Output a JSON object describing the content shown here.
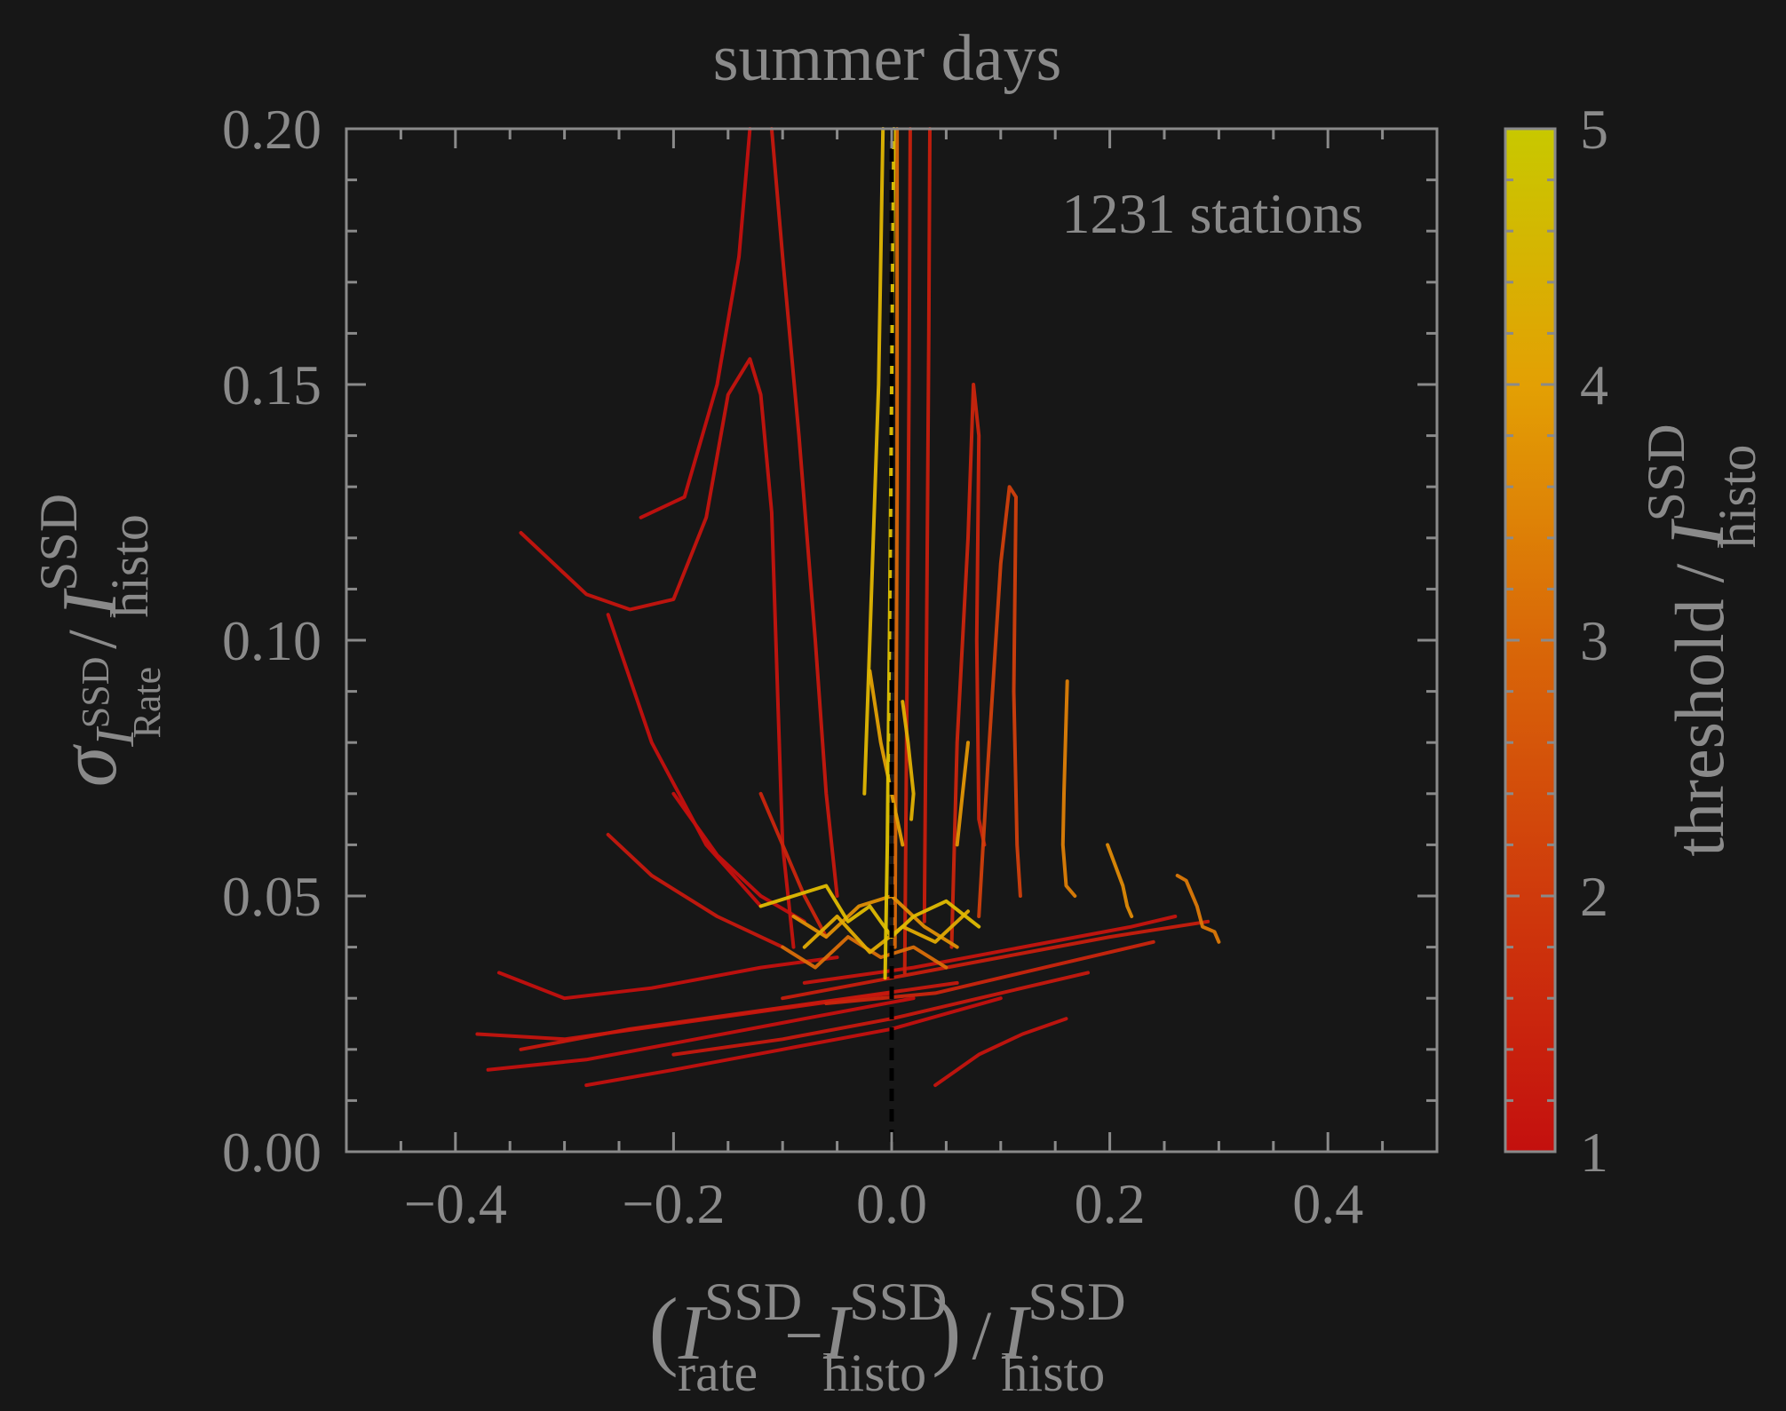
{
  "chart_data": {
    "type": "line",
    "title": "summer days",
    "annotation": "1231 stations",
    "xlabel": {
      "open": "(",
      "I1": "I",
      "sup1": "SSD",
      "sub1": "rate",
      "minus": "−",
      "I2": "I",
      "sup2": "SSD",
      "sub2": "histo",
      "close": ")",
      "slash": "/",
      "I3": "I",
      "sup3": "SSD",
      "sub3": "histo"
    },
    "ylabel": {
      "sigma": "σ",
      "subI": "I",
      "subsup": "SSD",
      "subsub": "Rate",
      "slash": "/",
      "I": "I",
      "sup": "SSD",
      "sub": "histo"
    },
    "colorbar": {
      "label": {
        "prefix": "threshold",
        "slash": "/",
        "I": "I",
        "sup": "SSD",
        "sub": "histo"
      },
      "range": [
        1,
        5
      ],
      "ticks": [
        "1",
        "2",
        "3",
        "4",
        "5"
      ],
      "colors": [
        "#c4100e",
        "#cf3a0c",
        "#d96808",
        "#e3a004",
        "#dcd800"
      ]
    },
    "xlim": [
      -0.5,
      0.5
    ],
    "ylim": [
      0.0,
      0.2
    ],
    "xticks": [
      -0.4,
      -0.2,
      0.0,
      0.2,
      0.4
    ],
    "xtick_labels": [
      "−0.4",
      "−0.2",
      "0.0",
      "0.2",
      "0.4"
    ],
    "yticks": [
      0.0,
      0.05,
      0.1,
      0.15,
      0.2
    ],
    "ytick_labels": [
      "0.00",
      "0.05",
      "0.10",
      "0.15",
      "0.20"
    ],
    "reference_line": {
      "x": 0.0,
      "style": "dashed",
      "color": "#000000"
    },
    "n_stations": 1231,
    "series": [
      {
        "values": [
          [
            -0.34,
            0.121
          ],
          [
            -0.28,
            0.109
          ],
          [
            -0.24,
            0.106
          ],
          [
            -0.2,
            0.108
          ],
          [
            -0.17,
            0.124
          ],
          [
            -0.15,
            0.148
          ],
          [
            -0.13,
            0.155
          ],
          [
            -0.12,
            0.148
          ],
          [
            -0.11,
            0.125
          ],
          [
            -0.1,
            0.06
          ],
          [
            -0.09,
            0.04
          ]
        ],
        "threshold": 1.1
      },
      {
        "values": [
          [
            -0.23,
            0.124
          ],
          [
            -0.19,
            0.128
          ],
          [
            -0.16,
            0.15
          ],
          [
            -0.14,
            0.175
          ],
          [
            -0.13,
            0.2
          ]
        ],
        "threshold": 1.0
      },
      {
        "values": [
          [
            -0.11,
            0.2
          ],
          [
            -0.1,
            0.175
          ],
          [
            -0.085,
            0.14
          ],
          [
            -0.07,
            0.1
          ],
          [
            -0.06,
            0.07
          ],
          [
            -0.05,
            0.05
          ]
        ],
        "threshold": 1.2
      },
      {
        "values": [
          [
            -0.006,
            0.034
          ],
          [
            -0.004,
            0.06
          ],
          [
            -0.002,
            0.1
          ],
          [
            0.0,
            0.15
          ],
          [
            0.002,
            0.2
          ]
        ],
        "threshold": 4.6
      },
      {
        "values": [
          [
            -0.025,
            0.07
          ],
          [
            -0.02,
            0.1
          ],
          [
            -0.012,
            0.15
          ],
          [
            -0.008,
            0.2
          ]
        ],
        "threshold": 4.4
      },
      {
        "values": [
          [
            0.003,
            0.04
          ],
          [
            0.004,
            0.08
          ],
          [
            0.005,
            0.13
          ],
          [
            0.005,
            0.2
          ]
        ],
        "threshold": 3.0
      },
      {
        "values": [
          [
            0.012,
            0.035
          ],
          [
            0.014,
            0.09
          ],
          [
            0.016,
            0.15
          ],
          [
            0.017,
            0.2
          ]
        ],
        "threshold": 1.4
      },
      {
        "values": [
          [
            0.03,
            0.045
          ],
          [
            0.032,
            0.1
          ],
          [
            0.034,
            0.16
          ],
          [
            0.035,
            0.2
          ]
        ],
        "threshold": 1.3
      },
      {
        "values": [
          [
            0.055,
            0.04
          ],
          [
            0.06,
            0.08
          ],
          [
            0.07,
            0.12
          ],
          [
            0.075,
            0.15
          ],
          [
            0.08,
            0.14
          ],
          [
            0.078,
            0.1
          ],
          [
            0.08,
            0.065
          ],
          [
            0.085,
            0.06
          ]
        ],
        "threshold": 1.5
      },
      {
        "values": [
          [
            0.08,
            0.046
          ],
          [
            0.088,
            0.075
          ],
          [
            0.1,
            0.115
          ],
          [
            0.108,
            0.13
          ],
          [
            0.114,
            0.128
          ],
          [
            0.112,
            0.09
          ],
          [
            0.115,
            0.06
          ],
          [
            0.118,
            0.05
          ]
        ],
        "threshold": 2.1
      },
      {
        "values": [
          [
            0.161,
            0.092
          ],
          [
            0.16,
            0.085
          ],
          [
            0.158,
            0.07
          ],
          [
            0.157,
            0.06
          ],
          [
            0.16,
            0.052
          ],
          [
            0.168,
            0.05
          ]
        ],
        "threshold": 3.4
      },
      {
        "values": [
          [
            0.198,
            0.06
          ],
          [
            0.205,
            0.056
          ],
          [
            0.212,
            0.052
          ],
          [
            0.216,
            0.048
          ],
          [
            0.22,
            0.046
          ]
        ],
        "threshold": 3.6
      },
      {
        "values": [
          [
            0.262,
            0.054
          ],
          [
            0.27,
            0.053
          ],
          [
            0.28,
            0.048
          ],
          [
            0.285,
            0.044
          ],
          [
            0.296,
            0.043
          ],
          [
            0.3,
            0.041
          ]
        ],
        "threshold": 3.3
      },
      {
        "values": [
          [
            -0.12,
            0.07
          ],
          [
            -0.1,
            0.06
          ],
          [
            -0.08,
            0.05
          ],
          [
            -0.06,
            0.042
          ]
        ],
        "threshold": 1.5
      },
      {
        "values": [
          [
            -0.26,
            0.105
          ],
          [
            -0.22,
            0.08
          ],
          [
            -0.17,
            0.06
          ],
          [
            -0.12,
            0.048
          ]
        ],
        "threshold": 1.0
      },
      {
        "values": [
          [
            -0.2,
            0.07
          ],
          [
            -0.16,
            0.058
          ],
          [
            -0.12,
            0.05
          ],
          [
            -0.08,
            0.045
          ]
        ],
        "threshold": 1.0
      },
      {
        "values": [
          [
            -0.26,
            0.062
          ],
          [
            -0.22,
            0.054
          ],
          [
            -0.16,
            0.046
          ],
          [
            -0.1,
            0.04
          ]
        ],
        "threshold": 1.2
      },
      {
        "values": [
          [
            -0.36,
            0.035
          ],
          [
            -0.3,
            0.03
          ],
          [
            -0.22,
            0.032
          ],
          [
            -0.12,
            0.036
          ],
          [
            -0.05,
            0.038
          ]
        ],
        "threshold": 1.0
      },
      {
        "values": [
          [
            -0.38,
            0.023
          ],
          [
            -0.3,
            0.022
          ],
          [
            -0.2,
            0.025
          ],
          [
            -0.1,
            0.028
          ],
          [
            0.0,
            0.031
          ]
        ],
        "threshold": 1.1
      },
      {
        "values": [
          [
            -0.37,
            0.016
          ],
          [
            -0.28,
            0.018
          ],
          [
            -0.18,
            0.022
          ],
          [
            -0.08,
            0.026
          ],
          [
            0.02,
            0.03
          ]
        ],
        "threshold": 1.0
      },
      {
        "values": [
          [
            -0.34,
            0.02
          ],
          [
            -0.24,
            0.024
          ],
          [
            -0.14,
            0.027
          ],
          [
            -0.04,
            0.03
          ],
          [
            0.06,
            0.033
          ]
        ],
        "threshold": 1.2
      },
      {
        "values": [
          [
            -0.28,
            0.013
          ],
          [
            -0.2,
            0.016
          ],
          [
            -0.1,
            0.02
          ],
          [
            0.0,
            0.024
          ],
          [
            0.1,
            0.03
          ]
        ],
        "threshold": 1.0
      },
      {
        "values": [
          [
            -0.1,
            0.03
          ],
          [
            0.0,
            0.034
          ],
          [
            0.1,
            0.038
          ],
          [
            0.2,
            0.042
          ],
          [
            0.29,
            0.045
          ]
        ],
        "threshold": 1.3
      },
      {
        "values": [
          [
            -0.08,
            0.033
          ],
          [
            0.02,
            0.036
          ],
          [
            0.12,
            0.04
          ],
          [
            0.22,
            0.044
          ],
          [
            0.26,
            0.046
          ]
        ],
        "threshold": 1.1
      },
      {
        "values": [
          [
            -0.06,
            0.029
          ],
          [
            0.04,
            0.031
          ],
          [
            0.14,
            0.036
          ],
          [
            0.24,
            0.041
          ]
        ],
        "threshold": 1.5
      },
      {
        "values": [
          [
            -0.2,
            0.019
          ],
          [
            -0.1,
            0.022
          ],
          [
            0.0,
            0.026
          ],
          [
            0.1,
            0.031
          ],
          [
            0.18,
            0.035
          ]
        ],
        "threshold": 1.2
      },
      {
        "values": [
          [
            0.04,
            0.013
          ],
          [
            0.08,
            0.019
          ],
          [
            0.12,
            0.023
          ],
          [
            0.16,
            0.026
          ]
        ],
        "threshold": 1.1
      },
      {
        "values": [
          [
            -0.12,
            0.048
          ],
          [
            -0.09,
            0.05
          ],
          [
            -0.06,
            0.052
          ],
          [
            -0.04,
            0.045
          ],
          [
            -0.02,
            0.048
          ],
          [
            0.0,
            0.042
          ],
          [
            0.02,
            0.046
          ],
          [
            0.05,
            0.049
          ],
          [
            0.08,
            0.044
          ]
        ],
        "threshold": 4.5
      },
      {
        "values": [
          [
            -0.08,
            0.04
          ],
          [
            -0.05,
            0.046
          ],
          [
            -0.02,
            0.039
          ],
          [
            0.01,
            0.044
          ],
          [
            0.04,
            0.041
          ],
          [
            0.07,
            0.047
          ]
        ],
        "threshold": 4.2
      },
      {
        "values": [
          [
            -0.09,
            0.046
          ],
          [
            -0.06,
            0.042
          ],
          [
            -0.03,
            0.048
          ],
          [
            0.0,
            0.05
          ],
          [
            0.03,
            0.044
          ],
          [
            0.06,
            0.04
          ]
        ],
        "threshold": 3.7
      },
      {
        "values": [
          [
            -0.1,
            0.04
          ],
          [
            -0.07,
            0.036
          ],
          [
            -0.04,
            0.042
          ],
          [
            -0.01,
            0.038
          ],
          [
            0.02,
            0.04
          ],
          [
            0.05,
            0.036
          ]
        ],
        "threshold": 3.1
      },
      {
        "values": [
          [
            -0.02,
            0.094
          ],
          [
            -0.01,
            0.08
          ],
          [
            0.0,
            0.07
          ],
          [
            0.01,
            0.06
          ]
        ],
        "threshold": 4.0
      },
      {
        "values": [
          [
            0.01,
            0.088
          ],
          [
            0.015,
            0.08
          ],
          [
            0.02,
            0.07
          ],
          [
            0.018,
            0.065
          ]
        ],
        "threshold": 4.3
      },
      {
        "values": [
          [
            0.07,
            0.08
          ],
          [
            0.065,
            0.07
          ],
          [
            0.06,
            0.06
          ]
        ],
        "threshold": 3.8
      }
    ]
  }
}
